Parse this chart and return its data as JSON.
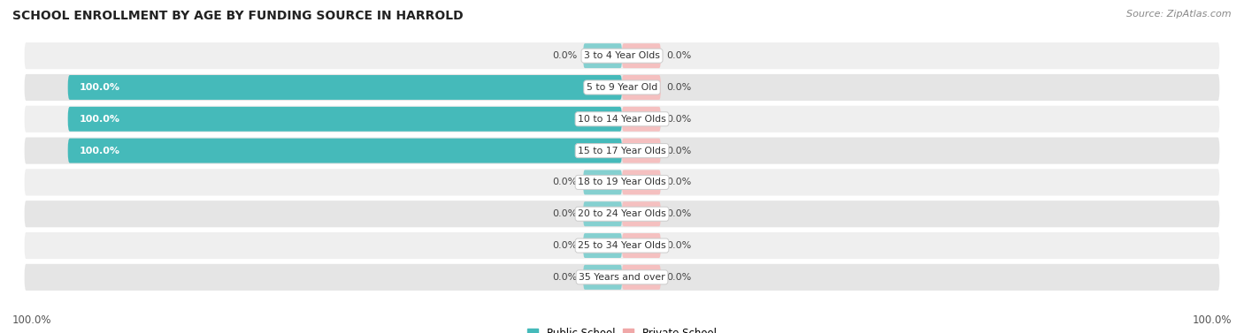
{
  "title": "SCHOOL ENROLLMENT BY AGE BY FUNDING SOURCE IN HARROLD",
  "source": "Source: ZipAtlas.com",
  "categories": [
    "3 to 4 Year Olds",
    "5 to 9 Year Old",
    "10 to 14 Year Olds",
    "15 to 17 Year Olds",
    "18 to 19 Year Olds",
    "20 to 24 Year Olds",
    "25 to 34 Year Olds",
    "35 Years and over"
  ],
  "public_values": [
    0.0,
    100.0,
    100.0,
    100.0,
    0.0,
    0.0,
    0.0,
    0.0
  ],
  "private_values": [
    0.0,
    0.0,
    0.0,
    0.0,
    0.0,
    0.0,
    0.0,
    0.0
  ],
  "public_color": "#45BABA",
  "private_color": "#F0A8A8",
  "public_zero_color": "#85D0D0",
  "private_zero_color": "#F5C0C0",
  "row_bg_even": "#EEEEEE",
  "row_bg_odd": "#E4E4E4",
  "title_fontsize": 10,
  "label_fontsize": 8,
  "tick_fontsize": 8.5,
  "source_fontsize": 8,
  "left_label": "100.0%",
  "right_label": "100.0%",
  "zero_bar_width": 7.0,
  "xlim": [
    -110,
    110
  ],
  "bar_height": 0.78
}
